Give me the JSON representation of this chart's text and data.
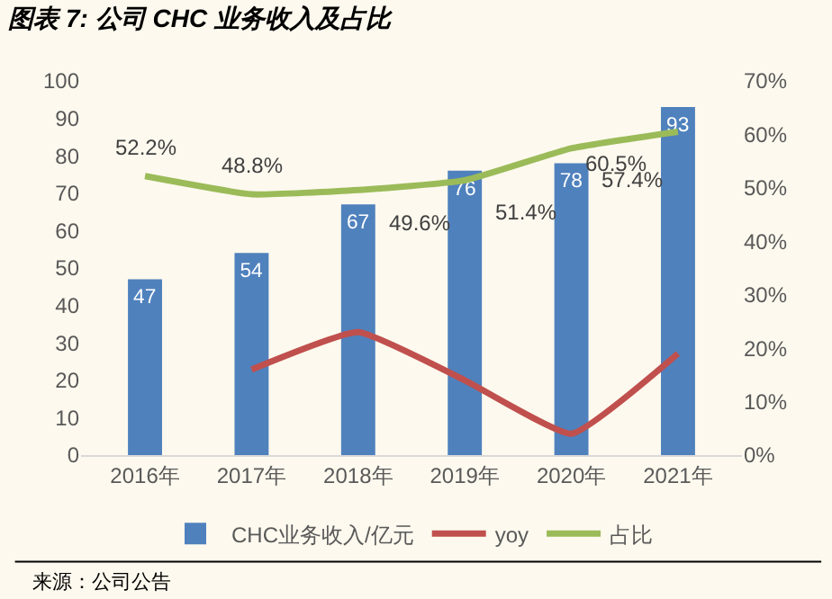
{
  "chart_data": {
    "type": "bar",
    "title": "图表 7: 公司 CHC 业务收入及占比",
    "categories": [
      "2016年",
      "2017年",
      "2018年",
      "2019年",
      "2020年",
      "2021年"
    ],
    "series": [
      {
        "name": "CHC业务收入/亿元",
        "color": "#4f81bd",
        "values": [
          47,
          54,
          67,
          76,
          78,
          93
        ],
        "value_labels": [
          "47",
          "54",
          "67",
          "76",
          "78",
          "93"
        ]
      },
      {
        "name": "yoy",
        "type": "line",
        "axis": "y2",
        "color": "#c0504d",
        "values": [
          null,
          16,
          23,
          14,
          4,
          19
        ]
      },
      {
        "name": "占比",
        "type": "line",
        "axis": "y2",
        "color": "#9bbb59",
        "values": [
          52.2,
          48.8,
          49.6,
          51.4,
          57.4,
          60.5
        ],
        "value_labels": [
          "52.2%",
          "48.8%",
          "49.6%",
          "51.4%",
          "57.4%",
          "60.5%"
        ]
      }
    ],
    "ylim": [
      0,
      100
    ],
    "yticks": [
      0,
      10,
      20,
      30,
      40,
      50,
      60,
      70,
      80,
      90,
      100
    ],
    "y2lim": [
      0,
      70
    ],
    "y2ticks": [
      {
        "value": 0,
        "label": "0%"
      },
      {
        "value": 10,
        "label": "10%"
      },
      {
        "value": 20,
        "label": "20%"
      },
      {
        "value": 30,
        "label": "30%"
      },
      {
        "value": 40,
        "label": "40%"
      },
      {
        "value": 50,
        "label": "50%"
      },
      {
        "value": 60,
        "label": "60%"
      },
      {
        "value": 70,
        "label": "70%"
      }
    ],
    "legend": "bottom",
    "marker": "none",
    "line_style": "solid",
    "annotations": [
      "来源：公司公告"
    ]
  }
}
